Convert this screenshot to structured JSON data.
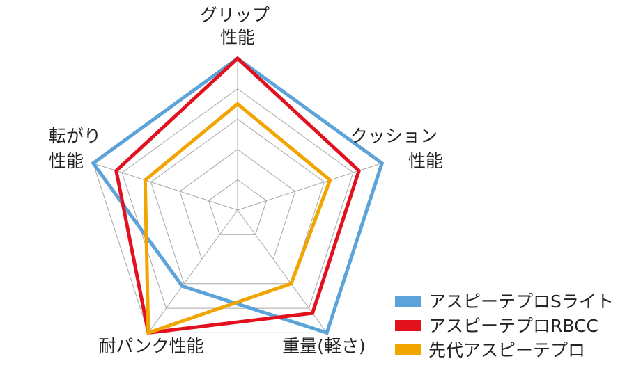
{
  "chart_data": {
    "type": "radar",
    "title": "",
    "axes": [
      {
        "lines": [
          "グリップ",
          "性能"
        ]
      },
      {
        "lines": [
          "クッション",
          "性能"
        ]
      },
      {
        "lines": [
          "重量(軽さ)"
        ]
      },
      {
        "lines": [
          "耐パンク性能"
        ]
      },
      {
        "lines": [
          "転がり",
          "性能"
        ]
      }
    ],
    "rlim": [
      0,
      5
    ],
    "grid_levels": 5,
    "grid": true,
    "legend_position": "bottom-right",
    "series": [
      {
        "name": "アスピーテプロSライト",
        "color": "#5ba3d9",
        "values": [
          5.0,
          5.0,
          5.0,
          3.1,
          5.0
        ]
      },
      {
        "name": "アスピーテプロRBCC",
        "color": "#e3101e",
        "values": [
          5.0,
          4.2,
          4.2,
          5.0,
          4.2
        ]
      },
      {
        "name": "先代アスピーテプロ",
        "color": "#f0a500",
        "values": [
          3.5,
          3.2,
          3.0,
          5.0,
          3.2
        ]
      }
    ]
  }
}
